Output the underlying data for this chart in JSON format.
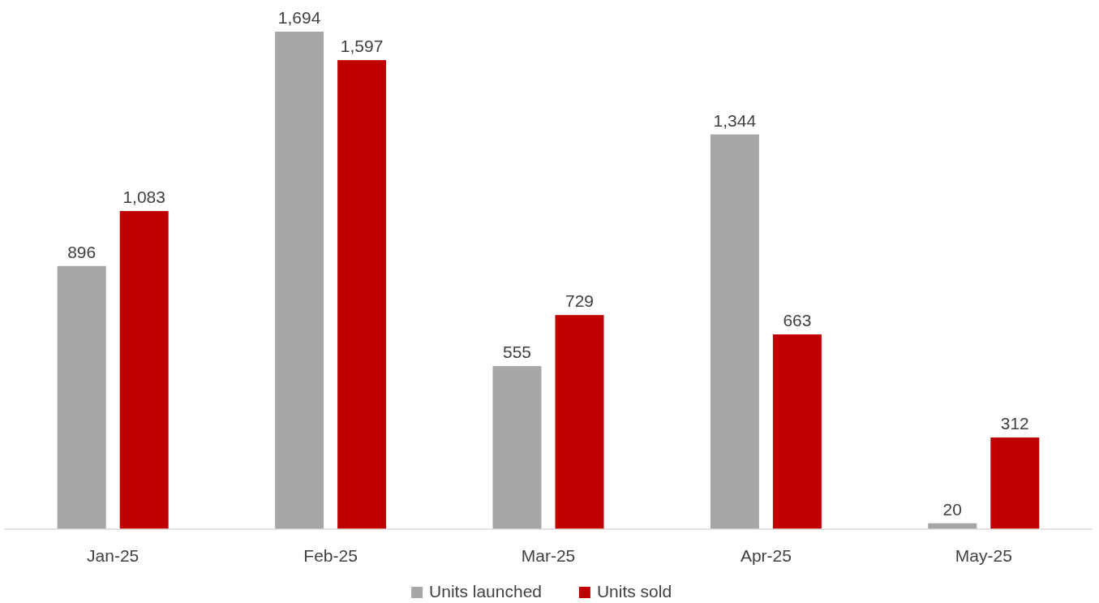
{
  "chart_data": {
    "type": "bar",
    "categories": [
      "Jan-25",
      "Feb-25",
      "Mar-25",
      "Apr-25",
      "May-25"
    ],
    "series": [
      {
        "name": "Units launched",
        "color": "#a6a6a6",
        "values": [
          896,
          1694,
          555,
          1344,
          20
        ],
        "value_labels": [
          "896",
          "1,694",
          "555",
          "1,344",
          "20"
        ]
      },
      {
        "name": "Units sold",
        "color": "#c00000",
        "values": [
          1083,
          1597,
          729,
          663,
          312
        ],
        "value_labels": [
          "1,083",
          "1,597",
          "729",
          "663",
          "312"
        ]
      }
    ],
    "tick_labels": "x",
    "legend": "bottom"
  }
}
